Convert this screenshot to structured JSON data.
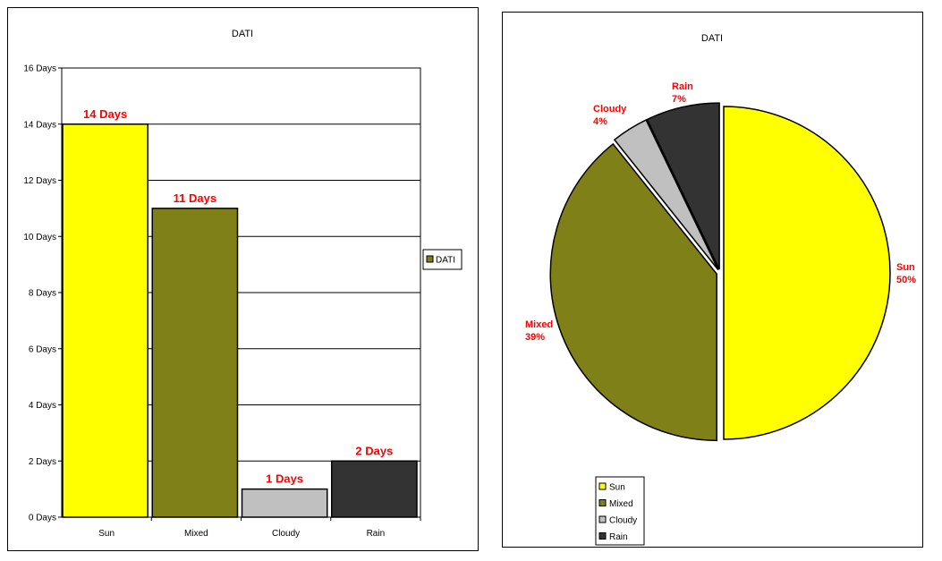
{
  "chart_data": [
    {
      "type": "bar",
      "title": "DATI",
      "categories": [
        "Sun",
        "Mixed",
        "Cloudy",
        "Rain"
      ],
      "values": [
        14,
        11,
        1,
        2
      ],
      "data_labels": [
        "14 Days",
        "11 Days",
        "1 Days",
        "2 Days"
      ],
      "colors": [
        "#ffff00",
        "#808018",
        "#c0c0c0",
        "#333333"
      ],
      "series": [
        {
          "name": "DATI",
          "values": [
            14,
            11,
            1,
            2
          ],
          "color": "#808018"
        }
      ],
      "ylim": [
        0,
        16
      ],
      "yticks": [
        0,
        2,
        4,
        6,
        8,
        10,
        12,
        14,
        16
      ],
      "ytick_labels": [
        "0 Days",
        "2 Days",
        "4 Days",
        "6 Days",
        "8 Days",
        "10 Days",
        "12 Days",
        "14 Days",
        "16 Days"
      ],
      "grid": true,
      "legend": "right"
    },
    {
      "type": "pie",
      "title": "DATI",
      "categories": [
        "Sun",
        "Mixed",
        "Cloudy",
        "Rain"
      ],
      "values": [
        14,
        11,
        1,
        2
      ],
      "percent_labels": [
        "50%",
        "39%",
        "4%",
        "7%"
      ],
      "colors": [
        "#ffff00",
        "#808018",
        "#c0c0c0",
        "#333333"
      ],
      "legend": "bottom"
    }
  ]
}
